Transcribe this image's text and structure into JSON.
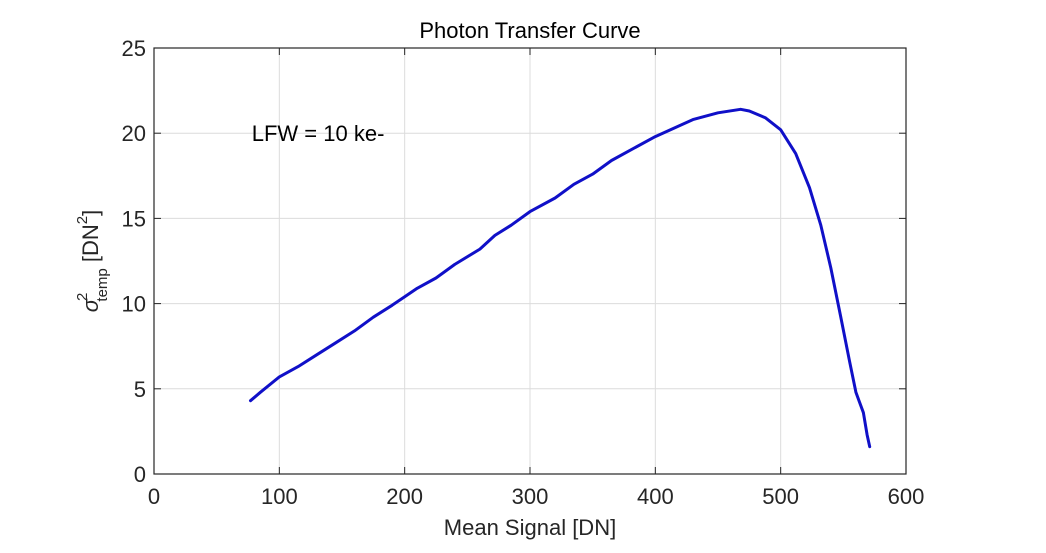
{
  "chart_data": {
    "type": "line",
    "title": "Photon Transfer Curve",
    "xlabel": "Mean Signal [DN]",
    "ylabel": {
      "symbol": "σ",
      "superscript": "2",
      "subscript": "temp",
      "unit_open": " [DN",
      "unit_superscript": "2",
      "unit_close": "]"
    },
    "xlim": [
      0,
      600
    ],
    "ylim": [
      0,
      25
    ],
    "xticks": [
      0,
      100,
      200,
      300,
      400,
      500,
      600
    ],
    "yticks": [
      0,
      5,
      10,
      15,
      20,
      25
    ],
    "grid": true,
    "annotation": {
      "text": "LFW = 10 ke-",
      "x": 78,
      "y": 20
    },
    "series": [
      {
        "color": "#1010c8",
        "x": [
          77,
          85,
          100,
          115,
          130,
          145,
          160,
          175,
          190,
          200,
          210,
          225,
          240,
          260,
          272,
          285,
          300,
          320,
          335,
          350,
          365,
          380,
          400,
          415,
          430,
          450,
          468,
          475,
          488,
          500,
          512,
          523,
          532,
          540,
          548,
          555,
          560,
          563,
          566,
          569,
          571
        ],
        "y": [
          4.3,
          4.8,
          5.7,
          6.3,
          7.0,
          7.7,
          8.4,
          9.2,
          9.9,
          10.4,
          10.9,
          11.5,
          12.3,
          13.2,
          14.0,
          14.6,
          15.4,
          16.2,
          17.0,
          17.6,
          18.4,
          19.0,
          19.8,
          20.3,
          20.8,
          21.2,
          21.4,
          21.3,
          20.9,
          20.2,
          18.8,
          16.8,
          14.6,
          12.1,
          9.2,
          6.6,
          4.8,
          4.2,
          3.6,
          2.3,
          1.6
        ]
      }
    ]
  }
}
